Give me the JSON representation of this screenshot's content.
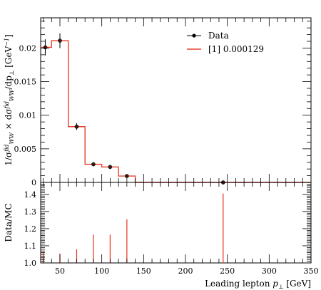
{
  "chart_data": [
    {
      "type": "step",
      "xlim": [
        27,
        350
      ],
      "ylim": [
        0,
        0.0245
      ],
      "y_ticks": [
        0,
        0.005,
        0.01,
        0.015,
        0.02
      ],
      "y_tick_labels": [
        "0",
        "0.005",
        "0.01",
        "0.015",
        "0.02"
      ],
      "ylabel_parts": [
        "1/σ",
        "fid",
        "WW",
        " × dσ",
        "fid",
        "WW",
        "/dp",
        "⊥",
        " [GeV",
        "−1",
        "]"
      ],
      "legend": {
        "placement": "top-right",
        "entries": [
          {
            "name": "Data",
            "style": "marker",
            "color": "#000000"
          },
          {
            "name": "[1] 0.000129",
            "style": "line",
            "color": "#e8412c"
          }
        ]
      },
      "data_points": {
        "x": [
          32.5,
          50,
          70,
          90,
          110,
          130,
          245
        ],
        "y": [
          0.0201,
          0.0211,
          0.0083,
          0.0027,
          0.0023,
          0.00095,
          0.0
        ],
        "yerr": [
          0.0012,
          0.0011,
          0.0005,
          0.0003,
          0.0003,
          0.00015,
          0.0
        ]
      },
      "mc_histogram": {
        "edges": [
          27,
          40,
          60,
          80,
          100,
          120,
          140,
          350
        ],
        "values": [
          0.0201,
          0.0211,
          0.0083,
          0.0027,
          0.0023,
          0.00095,
          0.0
        ],
        "color": "#e8412c"
      }
    },
    {
      "type": "bar",
      "ylabel": "Data/MC",
      "xlabel_parts": [
        "Leading lepton ",
        "p",
        "⊥",
        " [GeV]"
      ],
      "xlim": [
        27,
        350
      ],
      "ylim": [
        1.0,
        1.47
      ],
      "x_ticks": [
        50,
        100,
        150,
        200,
        250,
        300,
        350
      ],
      "x_tick_labels": [
        "50",
        "100",
        "150",
        "200",
        "250",
        "300",
        "350"
      ],
      "y_ticks": [
        1.0,
        1.1,
        1.2,
        1.3,
        1.4
      ],
      "y_tick_labels": [
        "1.0",
        "1.1",
        "1.2",
        "1.3",
        "1.4"
      ],
      "x": [
        30,
        50,
        70,
        90,
        110,
        130,
        245
      ],
      "values": [
        1.065,
        1.055,
        1.08,
        1.165,
        1.165,
        1.255,
        1.405
      ],
      "color": "#e8412c"
    }
  ]
}
